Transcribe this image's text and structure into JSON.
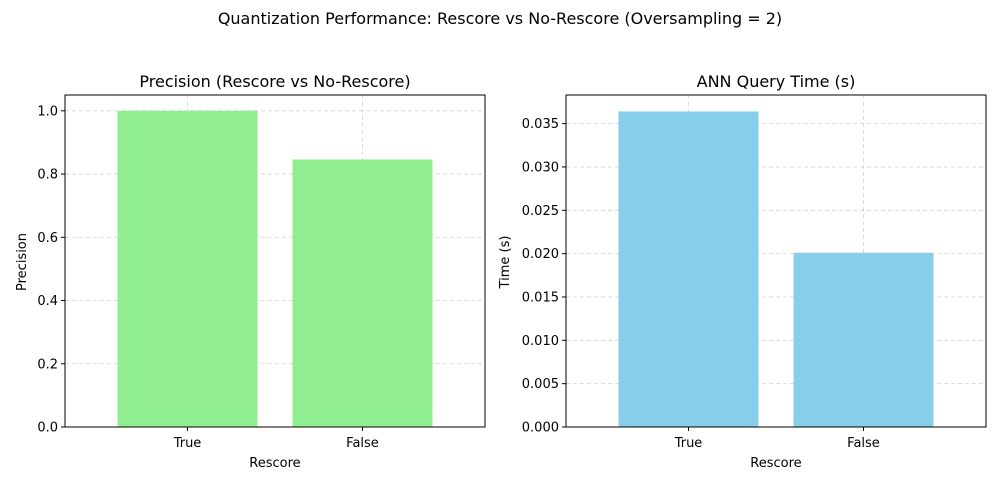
{
  "figure": {
    "suptitle": "Quantization Performance: Rescore vs No-Rescore (Oversampling = 2)"
  },
  "chart_data": [
    {
      "type": "bar",
      "title": "Precision (Rescore vs No-Rescore)",
      "xlabel": "Rescore",
      "ylabel": "Precision",
      "categories": [
        "True",
        "False"
      ],
      "values": [
        1.0,
        0.846
      ],
      "ylim": [
        0,
        1.05
      ],
      "yticks": [
        0.0,
        0.2,
        0.4,
        0.6,
        0.8,
        1.0
      ],
      "ytick_labels": [
        "0.0",
        "0.2",
        "0.4",
        "0.6",
        "0.8",
        "1.0"
      ],
      "color": "#90ee90",
      "grid": true
    },
    {
      "type": "bar",
      "title": "ANN Query Time (s)",
      "xlabel": "Rescore",
      "ylabel": "Time (s)",
      "categories": [
        "True",
        "False"
      ],
      "values": [
        0.0364,
        0.0201
      ],
      "ylim": [
        0,
        0.0383
      ],
      "yticks": [
        0.0,
        0.005,
        0.01,
        0.015,
        0.02,
        0.025,
        0.03,
        0.035
      ],
      "ytick_labels": [
        "0.000",
        "0.005",
        "0.010",
        "0.015",
        "0.020",
        "0.025",
        "0.030",
        "0.035"
      ],
      "color": "#87ceeb",
      "grid": true
    }
  ]
}
